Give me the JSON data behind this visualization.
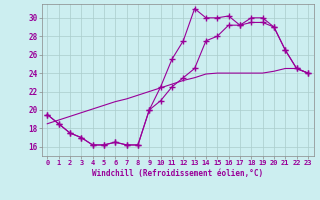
{
  "xlabel": "Windchill (Refroidissement éolien,°C)",
  "bg_color": "#cceef0",
  "line_color": "#990099",
  "grid_color": "#aacccc",
  "xlim": [
    -0.5,
    23.5
  ],
  "ylim": [
    15.0,
    31.5
  ],
  "xticks": [
    0,
    1,
    2,
    3,
    4,
    5,
    6,
    7,
    8,
    9,
    10,
    11,
    12,
    13,
    14,
    15,
    16,
    17,
    18,
    19,
    20,
    21,
    22,
    23
  ],
  "yticks": [
    16,
    18,
    20,
    22,
    24,
    26,
    28,
    30
  ],
  "line1_x": [
    0,
    1,
    2,
    3,
    4,
    5,
    6,
    7,
    8,
    9,
    10,
    11,
    12,
    13,
    14,
    15,
    16,
    17,
    18,
    19,
    20,
    21,
    22,
    23
  ],
  "line1_y": [
    19.5,
    18.5,
    17.5,
    17.0,
    16.2,
    16.2,
    16.5,
    16.2,
    16.2,
    20.0,
    22.5,
    25.5,
    27.5,
    31.0,
    30.0,
    30.0,
    30.2,
    29.2,
    30.0,
    30.0,
    29.0,
    26.5,
    24.5,
    24.0
  ],
  "line2_x": [
    0,
    1,
    2,
    3,
    4,
    5,
    6,
    7,
    8,
    9,
    10,
    11,
    12,
    13,
    14,
    15,
    16,
    17,
    18,
    19,
    20,
    21,
    22,
    23
  ],
  "line2_y": [
    19.5,
    18.5,
    17.5,
    17.0,
    16.2,
    16.2,
    16.5,
    16.2,
    16.2,
    20.0,
    21.0,
    22.5,
    23.5,
    24.5,
    27.5,
    28.0,
    29.2,
    29.2,
    29.5,
    29.5,
    29.0,
    26.5,
    24.5,
    24.0
  ],
  "line3_x": [
    0,
    1,
    2,
    3,
    4,
    5,
    6,
    7,
    8,
    9,
    10,
    11,
    12,
    13,
    14,
    15,
    16,
    17,
    18,
    19,
    20,
    21,
    22,
    23
  ],
  "line3_y": [
    18.5,
    18.9,
    19.3,
    19.7,
    20.1,
    20.5,
    20.9,
    21.2,
    21.6,
    22.0,
    22.4,
    22.8,
    23.2,
    23.5,
    23.9,
    24.0,
    24.0,
    24.0,
    24.0,
    24.0,
    24.2,
    24.5,
    24.5,
    24.0
  ]
}
